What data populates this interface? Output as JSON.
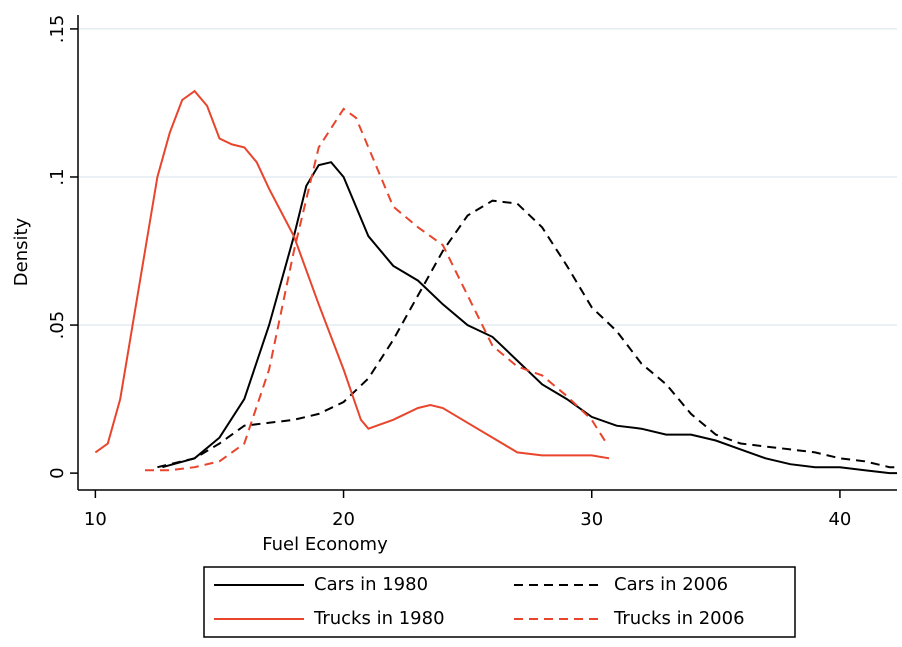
{
  "chart_data": {
    "type": "line",
    "x_label": "Fuel Economy",
    "y_label": "Density",
    "xlim": [
      9.3,
      42.3
    ],
    "ylim": [
      -0.0057,
      0.1547
    ],
    "xticks": [
      10,
      20,
      30,
      40
    ],
    "yticks": [
      0,
      {
        "value": 0.05,
        "label": ".05"
      },
      {
        "value": 0.1,
        "label": ".1"
      },
      {
        "value": 0.15,
        "label": ".15"
      }
    ],
    "grid": true,
    "legend": "bottom",
    "series": [
      {
        "name": "Cars in 1980",
        "color": "#000000",
        "style": "solid",
        "x": [
          12.7,
          14,
          15,
          16,
          17,
          18,
          18.5,
          19,
          19.5,
          20,
          21,
          22,
          23,
          24,
          25,
          26,
          27,
          28,
          29,
          30,
          31,
          32,
          33,
          34,
          35,
          36,
          37,
          38,
          39,
          40,
          41,
          42,
          42.3
        ],
        "values": [
          0.002,
          0.005,
          0.012,
          0.025,
          0.05,
          0.08,
          0.097,
          0.104,
          0.105,
          0.1,
          0.08,
          0.07,
          0.065,
          0.057,
          0.05,
          0.046,
          0.038,
          0.03,
          0.025,
          0.019,
          0.016,
          0.015,
          0.013,
          0.013,
          0.011,
          0.008,
          0.005,
          0.003,
          0.002,
          0.002,
          0.001,
          0,
          0
        ]
      },
      {
        "name": "Cars in 2006",
        "color": "#000000",
        "style": "dashed",
        "x": [
          12.5,
          14,
          15,
          16,
          17,
          18,
          19,
          20,
          21,
          22,
          23,
          24,
          25,
          26,
          27,
          28,
          29,
          30,
          31,
          32,
          33,
          34,
          35,
          36,
          37,
          38,
          39,
          40,
          41,
          42,
          42.3
        ],
        "values": [
          0.002,
          0.005,
          0.01,
          0.016,
          0.017,
          0.018,
          0.02,
          0.024,
          0.032,
          0.045,
          0.06,
          0.075,
          0.087,
          0.092,
          0.091,
          0.083,
          0.07,
          0.056,
          0.048,
          0.037,
          0.03,
          0.02,
          0.013,
          0.01,
          0.009,
          0.008,
          0.007,
          0.005,
          0.004,
          0.002,
          0.002
        ]
      },
      {
        "name": "Trucks in 1980",
        "color": "#e8452c",
        "style": "solid",
        "x": [
          10,
          10.5,
          11,
          11.5,
          12,
          12.5,
          13,
          13.5,
          14,
          14.5,
          15,
          15.5,
          16,
          16.5,
          17,
          18,
          19,
          20,
          20.7,
          21,
          22,
          23,
          23.5,
          24,
          25,
          26,
          27,
          28,
          29,
          30,
          30.7
        ],
        "values": [
          0.007,
          0.01,
          0.025,
          0.05,
          0.075,
          0.1,
          0.115,
          0.126,
          0.129,
          0.124,
          0.113,
          0.111,
          0.11,
          0.105,
          0.096,
          0.08,
          0.057,
          0.035,
          0.018,
          0.015,
          0.018,
          0.022,
          0.023,
          0.022,
          0.017,
          0.012,
          0.007,
          0.006,
          0.006,
          0.006,
          0.005
        ]
      },
      {
        "name": "Trucks in 2006",
        "color": "#e8452c",
        "style": "dashed",
        "x": [
          12,
          13,
          14,
          15,
          16,
          17,
          18,
          19,
          20,
          20.5,
          21,
          22,
          23,
          24,
          25,
          26,
          27,
          28,
          29,
          30,
          30.6
        ],
        "values": [
          0.001,
          0.001,
          0.002,
          0.004,
          0.01,
          0.035,
          0.075,
          0.11,
          0.123,
          0.12,
          0.11,
          0.09,
          0.083,
          0.077,
          0.06,
          0.043,
          0.036,
          0.033,
          0.026,
          0.018,
          0.01
        ]
      }
    ]
  }
}
